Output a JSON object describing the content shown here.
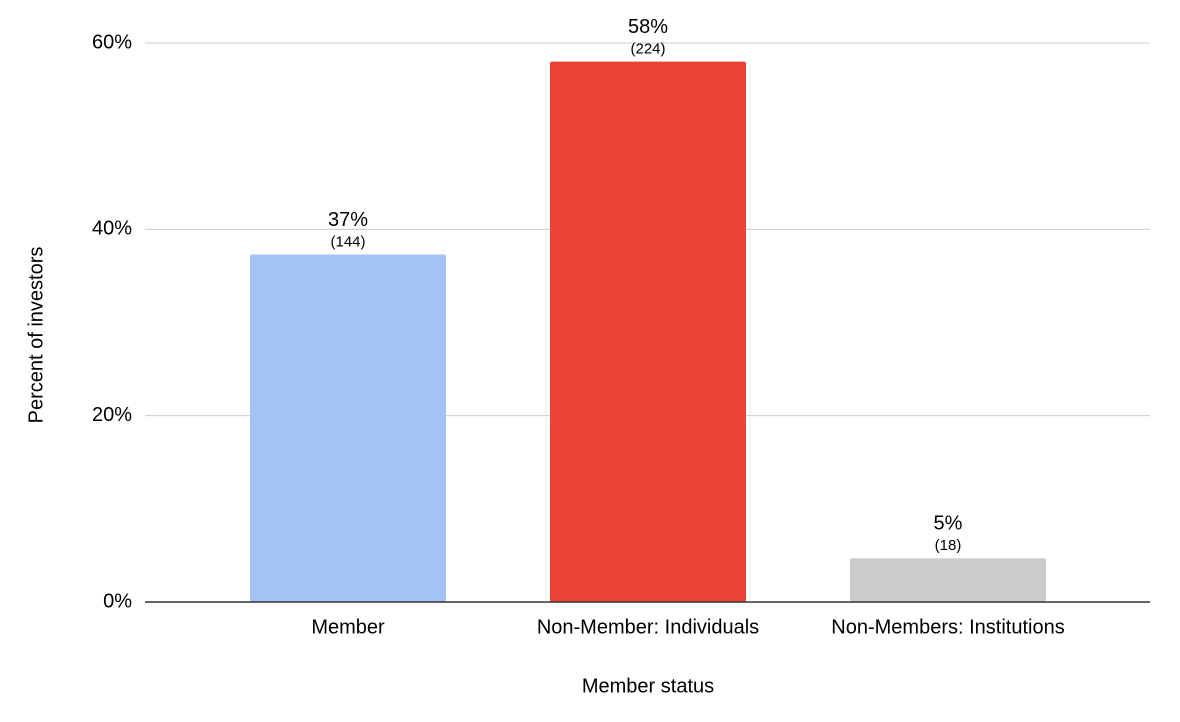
{
  "chart_data": {
    "type": "bar",
    "x_label": "Member status",
    "y_label": "Percent of investors",
    "categories": [
      "Member",
      "Non-Member: Individuals",
      "Non-Members: Institutions"
    ],
    "values": [
      37.3,
      58.0,
      4.7
    ],
    "value_labels": [
      "37%",
      "58%",
      "5%"
    ],
    "count_labels": [
      "(144)",
      "(224)",
      "(18)"
    ],
    "colors": [
      "#a4c2f4",
      "#ea4335",
      "#cccccc"
    ],
    "ylim": [
      0,
      60
    ],
    "yticks": [
      {
        "value": 0,
        "label": "0%"
      },
      {
        "value": 20,
        "label": "20%"
      },
      {
        "value": 40,
        "label": "40%"
      },
      {
        "value": 60,
        "label": "60%"
      }
    ],
    "grid": true
  }
}
